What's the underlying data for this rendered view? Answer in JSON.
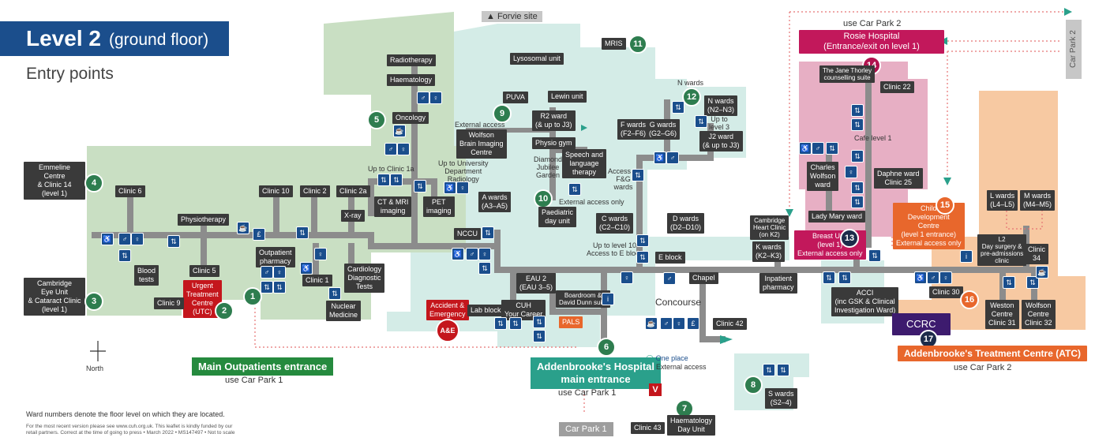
{
  "title": {
    "level": "Level 2",
    "floor": "(ground floor)",
    "subtitle": "Entry points"
  },
  "north": "North",
  "forvie": "Forvie site",
  "colors": {
    "green_zone": "#c9dfc3",
    "teal_zone": "#d4ece7",
    "pink_zone": "#e7afc4",
    "orange_zone": "#f7c9a2",
    "corridor": "#8c8c8c",
    "accent_blue": "#1b4e8c"
  },
  "entry_numbers": [
    "1",
    "2",
    "3",
    "4",
    "5",
    "6",
    "7",
    "8",
    "9",
    "10",
    "11",
    "12",
    "13",
    "14",
    "15",
    "16",
    "17"
  ],
  "labels": {
    "emmeline": "Emmeline\nCentre\n& Clinic 14\n(level 1)",
    "eye_unit": "Cambridge\nEye Unit\n& Cataract Clinic\n(level 1)",
    "clinic6": "Clinic 6",
    "physiotherapy": "Physiotherapy",
    "blood_tests": "Blood\ntests",
    "clinic5": "Clinic 5",
    "urgent": "Urgent\nTreatment\nCentre\n(UTC)",
    "clinic9": "Clinic 9",
    "clinic10": "Clinic 10",
    "clinic2": "Clinic 2",
    "clinic2a": "Clinic 2a",
    "xray": "X-ray",
    "outpatient_pharmacy": "Outpatient\npharmacy",
    "clinic1": "Clinic 1",
    "cardiology": "Cardiology\nDiagnostic\nTests",
    "nuclear": "Nuclear\nMedicine",
    "radiotherapy": "Radiotherapy",
    "haematology": "Haematology",
    "oncology": "Oncology",
    "ct_mri": "CT & MRI\nimaging",
    "pet": "PET\nimaging",
    "up_clinic1a": "Up to Clinic 1a",
    "up_univ": "Up to University\nDepartment\nRadiology",
    "wolfson_brain": "Wolfson\nBrain Imaging\nCentre",
    "external_access": "External access",
    "puva": "PUVA",
    "lysosomal": "Lysosomal unit",
    "lewin": "Lewin unit",
    "r2ward": "R2 ward\n(& up to J3)",
    "physio_gym": "Physio gym",
    "diamond": "Diamond\nJubilee\nGarden",
    "speech": "Speech and\nlanguage\ntherapy",
    "f_wards": "F wards\n(F2–F6)",
    "g_wards": "G wards\n(G2–G6)",
    "access_fg": "Access to\nF&G\nwards",
    "mris": "MRIS",
    "n_wards_title": "N wards",
    "n_wards": "N wards\n(N2–N3)",
    "up_level3": "Up to\nlevel 3",
    "j2_ward": "J2 ward\n(& up to J3)",
    "a_wards": "A wards\n(A3–A5)",
    "ext_access_only": "External access only",
    "paediatric": "Paediatric\nday unit",
    "c_wards": "C wards\n(C2–C10)",
    "d_wards": "D wards\n(D2–D10)",
    "nccu": "NCCU",
    "eau2": "EAU 2\n(EAU 3–5)",
    "up_level10": "Up to level 10\nAccess to E block",
    "e_block": "E block",
    "chapel": "Chapel",
    "ae": "Accident &\nEmergency",
    "ae_short": "A&E",
    "lab_block": "Lab block",
    "cuh_career": "CUH\nYour Career",
    "boardroom": "Boardroom &\nDavid Dunn suite",
    "pals": "PALS",
    "concourse": "Concourse",
    "clinic42": "Clinic 42",
    "inpatient_pharmacy": "Inpatient\npharmacy",
    "cambridge_heart": "Cambridge\nHeart Clinic\n(on K2)",
    "k_wards": "K wards\n(K2–K3)",
    "breast_unit": "Breast Unit\n(level 1)\nExternal access only",
    "acci": "ACCI\n(inc GSK & Clinical\nInvestigation Ward)",
    "rosie": "Rosie Hospital\n(Entrance/exit on level 1)",
    "use_cp2": "use Car Park 2",
    "jane_thorley": "The Jane Thorley\ncounselling suite",
    "clinic22": "Clinic 22",
    "cafe_level1": "Cafe level 1",
    "charles_wolfson": "Charles\nWolfson\nward",
    "daphne": "Daphne ward\nClinic 25",
    "lady_mary": "Lady Mary ward",
    "child_dev": "Child\nDevelopment\nCentre\n(level 1 entrance)\nExternal access only",
    "l_wards": "L wards\n(L4–L5)",
    "m_wards": "M wards\n(M4–M5)",
    "l2_day": "L2\nDay surgery &\npre-admissions\nclinic",
    "clinic34": "Clinic\n34",
    "clinic30": "Clinic 30",
    "weston": "Weston\nCentre\nClinic 31",
    "wolfson_centre": "Wolfson\nCentre\nClinic 32",
    "ccrc": "CCRC",
    "atc": "Addenbrooke's Treatment Centre (ATC)",
    "car_park2_side": "Car Park 2",
    "main_outpatients": "Main Outpatients entrance",
    "use_cp1": "use Car Park 1",
    "main_entrance": "Addenbrooke's Hospital\nmain entrance",
    "one_place": "One place",
    "ext_access": "External access",
    "car_park1": "Car Park 1",
    "clinic43": "Clinic 43",
    "haem_day": "Haematology\nDay Unit",
    "s_wards": "S wards\n(S2–4)",
    "v_icon": "V"
  },
  "footer": {
    "note": "Ward numbers denote the floor level on which they are located.",
    "small": "For the most recent version please see www.cuh.org.uk. This leaflet is kindly funded by our\nretail partners. Correct at the time of going to press • March 2022 • MS147497 • Not to scale"
  }
}
